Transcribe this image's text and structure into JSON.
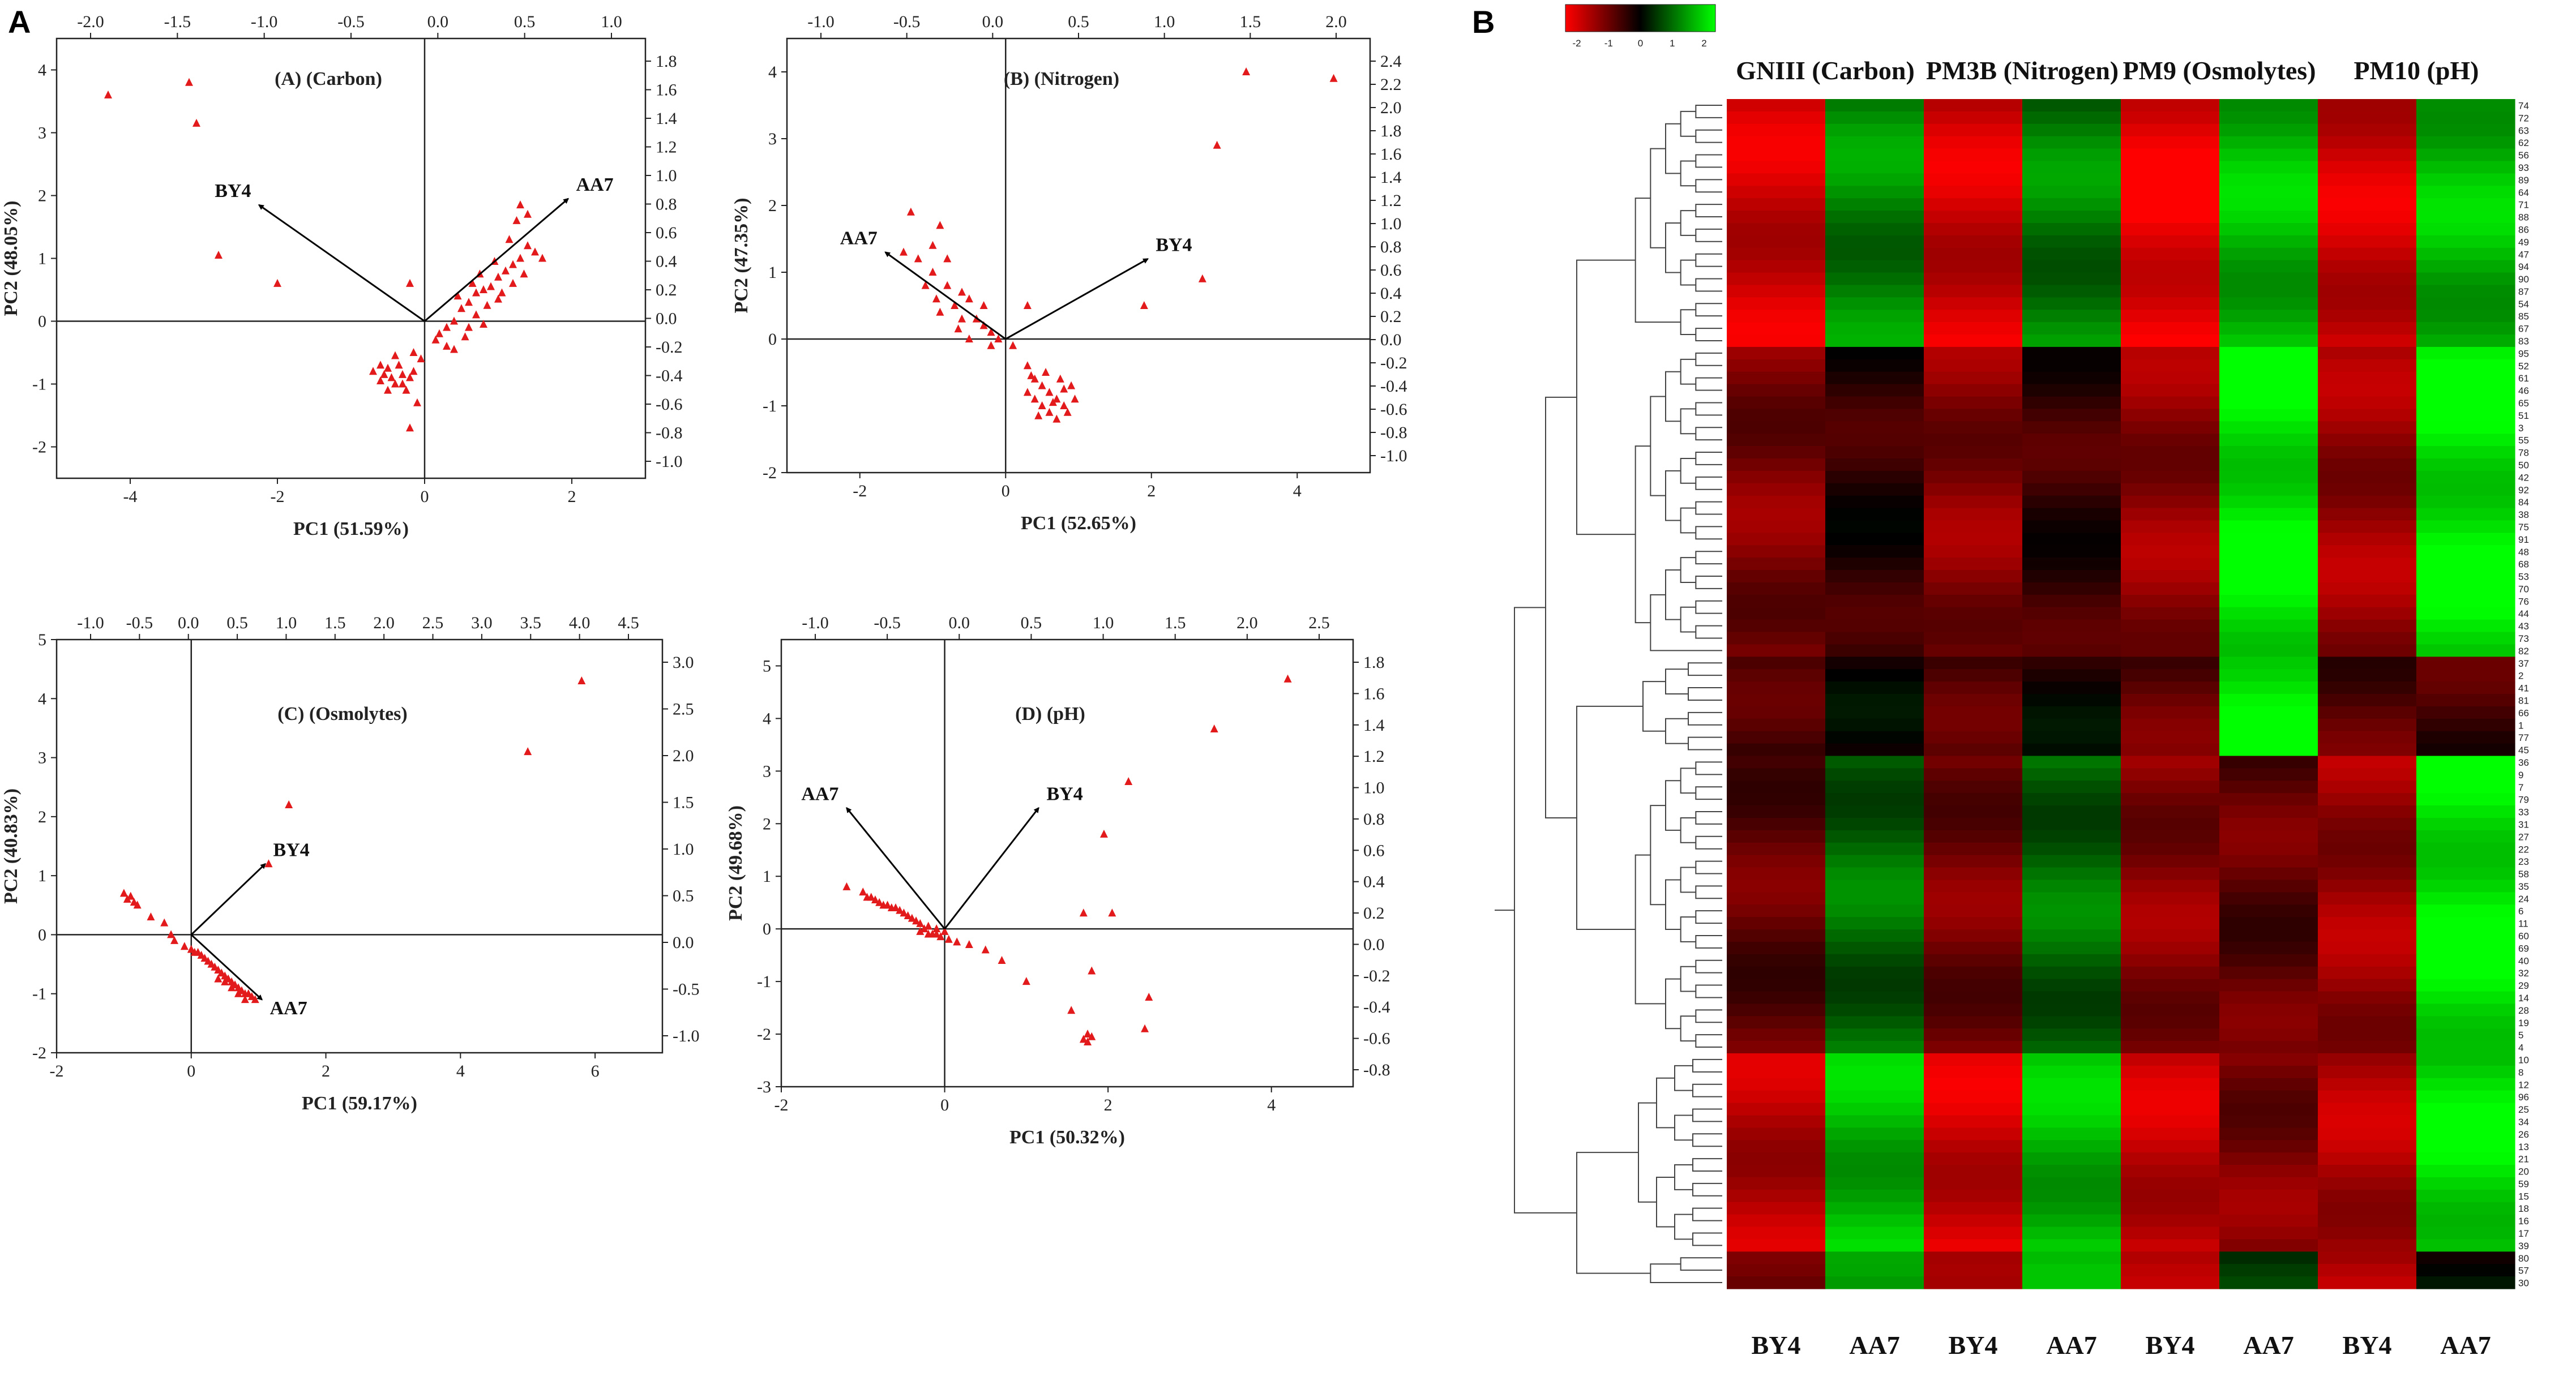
{
  "figure": {
    "panel_A_letter": "A",
    "panel_B_letter": "B"
  },
  "colors": {
    "points": "#e31a1c",
    "arrows": "#000000",
    "heat_low": "#ff0000",
    "heat_mid": "#000000",
    "heat_high": "#00ff00"
  },
  "chart_data": [
    {
      "id": "A",
      "type": "scatter",
      "title": "(A) (Carbon)",
      "xlabel": "PC1 (51.59%)",
      "ylabel": "PC2 (48.05%)",
      "xlim": [
        -5,
        3
      ],
      "ylim": [
        -2.5,
        4.5
      ],
      "xticks": [
        -4,
        -2,
        0,
        2
      ],
      "yticks": [
        -2,
        -1,
        0,
        1,
        2,
        3,
        4
      ],
      "top_ticks": [
        "-2.0",
        "-1.5",
        "-1.0",
        "-0.5",
        "0.0",
        "0.5",
        "1.0"
      ],
      "right_ticks": [
        "1.8",
        "1.6",
        "1.4",
        "1.2",
        "1.0",
        "0.8",
        "0.6",
        "0.4",
        "0.2",
        "0.0",
        "-0.2",
        "-0.4",
        "-0.6",
        "-0.8",
        "-1.0"
      ],
      "vectors": [
        {
          "label": "BY4",
          "x": -2.25,
          "y": 1.85
        },
        {
          "label": "AA7",
          "x": 1.95,
          "y": 1.95
        }
      ],
      "points": [
        [
          -4.3,
          3.6
        ],
        [
          -3.2,
          3.8
        ],
        [
          -3.1,
          3.15
        ],
        [
          -2.8,
          1.05
        ],
        [
          -2.0,
          0.6
        ],
        [
          -0.2,
          0.6
        ],
        [
          -0.7,
          -0.8
        ],
        [
          -0.6,
          -0.95
        ],
        [
          -0.5,
          -0.75
        ],
        [
          -0.4,
          -1.0
        ],
        [
          -0.3,
          -0.85
        ],
        [
          -0.2,
          -0.9
        ],
        [
          -0.35,
          -0.7
        ],
        [
          -0.45,
          -0.9
        ],
        [
          -0.25,
          -1.1
        ],
        [
          -0.15,
          -0.8
        ],
        [
          -0.55,
          -0.85
        ],
        [
          -0.1,
          -1.3
        ],
        [
          -0.2,
          -1.7
        ],
        [
          -0.05,
          -0.6
        ],
        [
          -0.3,
          -1.0
        ],
        [
          -0.5,
          -1.1
        ],
        [
          -0.6,
          -0.7
        ],
        [
          -0.4,
          -0.55
        ],
        [
          -0.15,
          -0.5
        ],
        [
          0.2,
          -0.2
        ],
        [
          0.3,
          -0.1
        ],
        [
          0.5,
          0.2
        ],
        [
          0.6,
          0.3
        ],
        [
          0.7,
          0.45
        ],
        [
          0.8,
          0.5
        ],
        [
          0.9,
          0.55
        ],
        [
          1.0,
          0.7
        ],
        [
          1.1,
          0.8
        ],
        [
          1.2,
          0.9
        ],
        [
          1.3,
          1.0
        ],
        [
          1.4,
          1.2
        ],
        [
          1.5,
          1.1
        ],
        [
          1.6,
          1.0
        ],
        [
          0.95,
          0.95
        ],
        [
          1.15,
          1.3
        ],
        [
          1.25,
          1.6
        ],
        [
          1.4,
          1.7
        ],
        [
          0.7,
          0.1
        ],
        [
          0.55,
          -0.25
        ],
        [
          0.4,
          -0.45
        ],
        [
          0.3,
          -0.4
        ],
        [
          0.85,
          0.25
        ],
        [
          1.05,
          0.45
        ],
        [
          1.2,
          0.6
        ],
        [
          0.65,
          0.6
        ],
        [
          0.4,
          0.0
        ],
        [
          0.15,
          -0.3
        ],
        [
          1.3,
          1.85
        ],
        [
          0.45,
          0.4
        ],
        [
          0.75,
          0.75
        ],
        [
          1.0,
          0.35
        ],
        [
          0.6,
          -0.1
        ],
        [
          0.8,
          -0.05
        ],
        [
          1.35,
          0.75
        ]
      ]
    },
    {
      "id": "B",
      "type": "scatter",
      "title": "(B) (Nitrogen)",
      "xlabel": "PC1 (52.65%)",
      "ylabel": "PC2 (47.35%)",
      "xlim": [
        -3,
        5
      ],
      "ylim": [
        -2,
        4.5
      ],
      "xticks": [
        -2,
        0,
        2,
        4
      ],
      "yticks": [
        -2,
        -1,
        0,
        1,
        2,
        3,
        4
      ],
      "top_ticks": [
        "-1.0",
        "-0.5",
        "0.0",
        "0.5",
        "1.0",
        "1.5",
        "2.0"
      ],
      "right_ticks": [
        "2.4",
        "2.2",
        "2.0",
        "1.8",
        "1.6",
        "1.4",
        "1.2",
        "1.0",
        "0.8",
        "0.6",
        "0.4",
        "0.2",
        "0.0",
        "-0.2",
        "-0.4",
        "-0.6",
        "-0.8",
        "-1.0"
      ],
      "vectors": [
        {
          "label": "AA7",
          "x": -1.65,
          "y": 1.3
        },
        {
          "label": "BY4",
          "x": 1.95,
          "y": 1.2
        }
      ],
      "points": [
        [
          3.3,
          4.0
        ],
        [
          4.5,
          3.9
        ],
        [
          2.9,
          2.9
        ],
        [
          2.7,
          0.9
        ],
        [
          1.9,
          0.5
        ],
        [
          0.3,
          0.5
        ],
        [
          -1.3,
          1.9
        ],
        [
          -1.0,
          1.4
        ],
        [
          -0.9,
          1.7
        ],
        [
          -1.2,
          1.2
        ],
        [
          -1.0,
          1.0
        ],
        [
          -0.8,
          0.8
        ],
        [
          -0.6,
          0.7
        ],
        [
          -0.5,
          0.6
        ],
        [
          -0.4,
          0.3
        ],
        [
          -0.3,
          0.2
        ],
        [
          -0.2,
          0.1
        ],
        [
          -0.1,
          0.0
        ],
        [
          -0.7,
          0.5
        ],
        [
          -0.9,
          0.4
        ],
        [
          -1.1,
          0.8
        ],
        [
          -0.6,
          0.3
        ],
        [
          -0.3,
          0.5
        ],
        [
          -0.8,
          1.2
        ],
        [
          -0.5,
          0.0
        ],
        [
          0.3,
          -0.4
        ],
        [
          0.4,
          -0.6
        ],
        [
          0.5,
          -0.7
        ],
        [
          0.6,
          -0.8
        ],
        [
          0.7,
          -0.9
        ],
        [
          0.8,
          -1.0
        ],
        [
          0.9,
          -0.7
        ],
        [
          0.5,
          -1.0
        ],
        [
          0.6,
          -1.1
        ],
        [
          0.7,
          -1.2
        ],
        [
          0.4,
          -0.9
        ],
        [
          0.3,
          -0.8
        ],
        [
          0.55,
          -0.5
        ],
        [
          0.75,
          -0.6
        ],
        [
          0.85,
          -1.1
        ],
        [
          0.95,
          -0.9
        ],
        [
          0.45,
          -1.15
        ],
        [
          0.65,
          -0.95
        ],
        [
          0.35,
          -0.55
        ],
        [
          0.8,
          -0.75
        ],
        [
          -0.2,
          -0.1
        ],
        [
          0.1,
          -0.1
        ],
        [
          -1.4,
          1.3
        ],
        [
          -0.95,
          0.6
        ],
        [
          -0.65,
          0.15
        ]
      ]
    },
    {
      "id": "C",
      "type": "scatter",
      "title": "(C) (Osmolytes)",
      "xlabel": "PC1 (59.17%)",
      "ylabel": "PC2 (40.83%)",
      "xlim": [
        -2,
        7
      ],
      "ylim": [
        -2,
        5
      ],
      "xticks": [
        -2,
        0,
        2,
        4,
        6
      ],
      "yticks": [
        -2,
        -1,
        0,
        1,
        2,
        3,
        4,
        5
      ],
      "top_ticks": [
        "-1.0",
        "-0.5",
        "0.0",
        "0.5",
        "1.0",
        "1.5",
        "2.0",
        "2.5",
        "3.0",
        "3.5",
        "4.0",
        "4.5"
      ],
      "right_ticks": [
        "3.0",
        "2.5",
        "2.0",
        "1.5",
        "1.0",
        "0.5",
        "0.0",
        "-0.5",
        "-1.0"
      ],
      "vectors": [
        {
          "label": "BY4",
          "x": 1.1,
          "y": 1.2
        },
        {
          "label": "AA7",
          "x": 1.05,
          "y": -1.1
        }
      ],
      "points": [
        [
          5.8,
          4.3
        ],
        [
          5.0,
          3.1
        ],
        [
          1.45,
          2.2
        ],
        [
          1.15,
          1.2
        ],
        [
          -1.0,
          0.7
        ],
        [
          -0.95,
          0.6
        ],
        [
          -0.9,
          0.65
        ],
        [
          -0.85,
          0.55
        ],
        [
          -0.8,
          0.5
        ],
        [
          -0.6,
          0.3
        ],
        [
          -0.4,
          0.2
        ],
        [
          -0.3,
          0.0
        ],
        [
          -0.25,
          -0.1
        ],
        [
          -0.1,
          -0.2
        ],
        [
          0.0,
          -0.25
        ],
        [
          0.1,
          -0.3
        ],
        [
          0.2,
          -0.4
        ],
        [
          0.3,
          -0.5
        ],
        [
          0.4,
          -0.6
        ],
        [
          0.5,
          -0.7
        ],
        [
          0.6,
          -0.8
        ],
        [
          0.7,
          -0.9
        ],
        [
          0.8,
          -1.0
        ],
        [
          0.9,
          -1.05
        ],
        [
          0.95,
          -1.1
        ],
        [
          0.55,
          -0.75
        ],
        [
          0.65,
          -0.85
        ],
        [
          0.75,
          -0.95
        ],
        [
          0.85,
          -1.0
        ],
        [
          0.45,
          -0.65
        ],
        [
          0.35,
          -0.55
        ],
        [
          0.25,
          -0.45
        ],
        [
          0.15,
          -0.35
        ],
        [
          0.05,
          -0.3
        ],
        [
          0.4,
          -0.75
        ],
        [
          0.5,
          -0.8
        ],
        [
          0.6,
          -0.9
        ],
        [
          0.7,
          -1.0
        ],
        [
          0.8,
          -1.1
        ]
      ]
    },
    {
      "id": "D",
      "type": "scatter",
      "title": "(D) (pH)",
      "xlabel": "PC1 (50.32%)",
      "ylabel": "PC2 (49.68%)",
      "xlim": [
        -2,
        5
      ],
      "ylim": [
        -3,
        5.5
      ],
      "xticks": [
        -2,
        0,
        2,
        4
      ],
      "yticks": [
        -3,
        -2,
        -1,
        0,
        1,
        2,
        3,
        4,
        5
      ],
      "top_ticks": [
        "-1.0",
        "-0.5",
        "0.0",
        "0.5",
        "1.0",
        "1.5",
        "2.0",
        "2.5"
      ],
      "right_ticks": [
        "1.8",
        "1.6",
        "1.4",
        "1.2",
        "1.0",
        "0.8",
        "0.6",
        "0.4",
        "0.2",
        "0.0",
        "-0.2",
        "-0.4",
        "-0.6",
        "-0.8"
      ],
      "vectors": [
        {
          "label": "AA7",
          "x": -1.2,
          "y": 2.3
        },
        {
          "label": "BY4",
          "x": 1.15,
          "y": 2.3
        }
      ],
      "points": [
        [
          4.2,
          4.75
        ],
        [
          3.3,
          3.8
        ],
        [
          2.25,
          2.8
        ],
        [
          1.95,
          1.8
        ],
        [
          2.05,
          0.3
        ],
        [
          1.7,
          0.3
        ],
        [
          1.8,
          -0.8
        ],
        [
          2.5,
          -1.3
        ],
        [
          2.45,
          -1.9
        ],
        [
          1.55,
          -1.55
        ],
        [
          1.75,
          -2.0
        ],
        [
          1.7,
          -2.1
        ],
        [
          1.8,
          -2.05
        ],
        [
          1.75,
          -2.15
        ],
        [
          1.0,
          -1.0
        ],
        [
          0.7,
          -0.6
        ],
        [
          0.5,
          -0.4
        ],
        [
          0.3,
          -0.3
        ],
        [
          -1.2,
          0.8
        ],
        [
          -1.0,
          0.7
        ],
        [
          -0.9,
          0.6
        ],
        [
          -0.8,
          0.5
        ],
        [
          -0.7,
          0.45
        ],
        [
          -0.6,
          0.4
        ],
        [
          -0.5,
          0.3
        ],
        [
          -0.4,
          0.2
        ],
        [
          -0.3,
          0.1
        ],
        [
          -0.2,
          0.05
        ],
        [
          -0.1,
          0.0
        ],
        [
          0.0,
          -0.05
        ],
        [
          -0.25,
          0.0
        ],
        [
          -0.15,
          -0.1
        ],
        [
          -0.05,
          -0.15
        ],
        [
          0.05,
          -0.2
        ],
        [
          0.15,
          -0.25
        ],
        [
          -0.35,
          0.15
        ],
        [
          -0.45,
          0.25
        ],
        [
          -0.55,
          0.35
        ],
        [
          -0.65,
          0.4
        ],
        [
          -0.75,
          0.45
        ],
        [
          -0.85,
          0.55
        ],
        [
          -0.95,
          0.6
        ],
        [
          -0.3,
          -0.05
        ],
        [
          -0.2,
          -0.1
        ],
        [
          -0.1,
          -0.1
        ]
      ]
    },
    {
      "id": "heatmap",
      "type": "heatmap",
      "colorbar_ticks": [
        "-2",
        "-1",
        "0",
        "1",
        "2"
      ],
      "groups": [
        "GNIII (Carbon)",
        "PM3B (Nitrogen)",
        "PM9 (Osmolytes)",
        "PM10 (pH)"
      ],
      "columns": [
        "BY4",
        "AA7",
        "BY4",
        "AA7",
        "BY4",
        "AA7",
        "BY4",
        "AA7"
      ],
      "rows": [
        "74",
        "72",
        "63",
        "62",
        "56",
        "93",
        "89",
        "64",
        "71",
        "88",
        "86",
        "49",
        "47",
        "94",
        "90",
        "87",
        "54",
        "85",
        "67",
        "83",
        "95",
        "52",
        "61",
        "46",
        "65",
        "51",
        "3",
        "55",
        "78",
        "50",
        "42",
        "92",
        "84",
        "38",
        "75",
        "91",
        "48",
        "68",
        "53",
        "70",
        "76",
        "44",
        "43",
        "73",
        "82",
        "37",
        "2",
        "41",
        "81",
        "66",
        "1",
        "77",
        "45",
        "36",
        "9",
        "7",
        "79",
        "33",
        "31",
        "27",
        "22",
        "23",
        "58",
        "35",
        "24",
        "6",
        "11",
        "60",
        "69",
        "40",
        "32",
        "29",
        "14",
        "28",
        "19",
        "5",
        "4",
        "10",
        "8",
        "12",
        "96",
        "25",
        "34",
        "26",
        "13",
        "21",
        "20",
        "59",
        "15",
        "18",
        "16",
        "17",
        "39",
        "80",
        "57",
        "30"
      ],
      "row_group_sizes": [
        20,
        25,
        8,
        24,
        16,
        3
      ],
      "group_patterns": [
        [
          -2.0,
          1.3,
          -2.0,
          1.2,
          -2.3,
          1.8,
          -2.0,
          1.8
        ],
        [
          -1.2,
          -0.4,
          -1.3,
          -0.5,
          -1.4,
          2.3,
          -1.5,
          2.3
        ],
        [
          -0.6,
          -0.2,
          -0.7,
          -0.2,
          -0.9,
          2.4,
          -0.8,
          -0.6
        ],
        [
          -0.9,
          1.0,
          -1.1,
          1.0,
          -1.3,
          -0.9,
          -1.5,
          2.3
        ],
        [
          -1.8,
          1.8,
          -2.0,
          1.8,
          -1.9,
          -1.2,
          -1.7,
          2.2
        ],
        [
          -0.8,
          1.2,
          -1.2,
          1.5,
          -1.5,
          0.3,
          -1.6,
          0.0
        ]
      ]
    }
  ]
}
